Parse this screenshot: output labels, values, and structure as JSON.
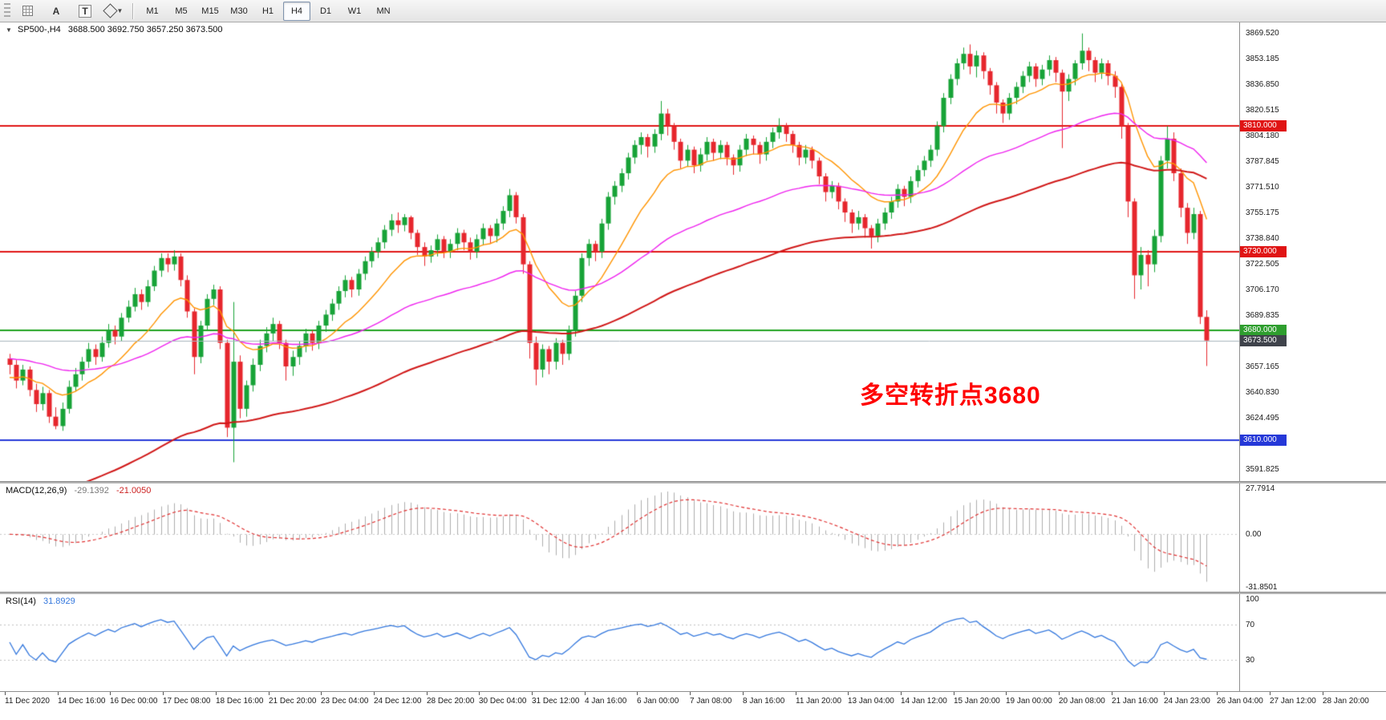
{
  "toolbar": {
    "tools": [
      {
        "id": "grid-tool",
        "icon": "grid-icon",
        "label": ""
      },
      {
        "id": "arrow-text-tool",
        "icon": "letter-a-icon",
        "label": "A"
      },
      {
        "id": "text-tool",
        "icon": "letter-t-icon",
        "label": "T"
      },
      {
        "id": "shapes-tool",
        "icon": "shapes-icon",
        "label": ""
      }
    ],
    "timeframes": [
      "M1",
      "M5",
      "M15",
      "M30",
      "H1",
      "H4",
      "D1",
      "W1",
      "MN"
    ],
    "active_timeframe": "H4"
  },
  "chart_header": {
    "collapse_icon": "triangle-down-icon",
    "symbol_period": "SP500-,H4",
    "ohlc": "3688.500 3692.750 3657.250 3673.500"
  },
  "annotation": {
    "text": "多空转折点3680",
    "color": "#FF0000"
  },
  "price_axis": {
    "labels": [
      "3869.520",
      "3853.185",
      "3836.850",
      "3820.515",
      "3804.180",
      "3787.845",
      "3771.510",
      "3755.175",
      "3738.840",
      "3722.505",
      "3706.170",
      "3689.835",
      "3657.165",
      "3640.830",
      "3624.495",
      "3608.160",
      "3591.825"
    ],
    "badges": [
      {
        "label": "3810.000",
        "level": 3810,
        "bg": "#e01414"
      },
      {
        "label": "3730.000",
        "level": 3730,
        "bg": "#e01414"
      },
      {
        "label": "3680.000",
        "level": 3680,
        "bg": "#2e9e2e"
      },
      {
        "label": "3673.500",
        "level": 3673.5,
        "bg": "#3f434b"
      },
      {
        "label": "3610.000",
        "level": 3610,
        "bg": "#2538d8"
      }
    ]
  },
  "chart_data": {
    "type": "candlestick",
    "symbol": "SP500-",
    "timeframe": "H4",
    "up_color": "#17a337",
    "down_color": "#e6262d",
    "ylim": [
      3584,
      3876
    ],
    "hlines": [
      {
        "level": 3810,
        "color": "#e01414",
        "width": 2
      },
      {
        "level": 3730,
        "color": "#e01414",
        "width": 2
      },
      {
        "level": 3680,
        "color": "#1fa31f",
        "width": 2
      },
      {
        "level": 3610,
        "color": "#2538d8",
        "width": 2
      }
    ],
    "bid_line": {
      "level": 3673.5,
      "color": "#a9b6bd",
      "width": 1
    },
    "moving_averages": [
      {
        "period": 14,
        "seed": 3650,
        "color": "#ff9400",
        "width": 1.4
      },
      {
        "period": 50,
        "seed": 3662,
        "color": "#ee22ee",
        "width": 1.4
      },
      {
        "period": 100,
        "seed": 3568,
        "color": "#d01818",
        "width": 2
      }
    ],
    "x_labels": [
      "11 Dec 2020",
      "14 Dec 16:00",
      "16 Dec 00:00",
      "17 Dec 08:00",
      "18 Dec 16:00",
      "21 Dec 20:00",
      "23 Dec 04:00",
      "24 Dec 12:00",
      "28 Dec 20:00",
      "30 Dec 04:00",
      "31 Dec 12:00",
      "4 Jan 16:00",
      "6 Jan 00:00",
      "7 Jan 08:00",
      "8 Jan 16:00",
      "11 Jan 20:00",
      "13 Jan 04:00",
      "14 Jan 12:00",
      "15 Jan 20:00",
      "19 Jan 00:00",
      "20 Jan 08:00",
      "21 Jan 16:00",
      "24 Jan 23:00",
      "26 Jan 04:00",
      "27 Jan 12:00",
      "28 Jan 20:00"
    ],
    "ohlc": [
      [
        3662,
        3665,
        3652,
        3658
      ],
      [
        3658,
        3661,
        3643,
        3648
      ],
      [
        3648,
        3658,
        3645,
        3655
      ],
      [
        3655,
        3657,
        3638,
        3642
      ],
      [
        3642,
        3646,
        3628,
        3633
      ],
      [
        3633,
        3644,
        3629,
        3640
      ],
      [
        3640,
        3642,
        3621,
        3625
      ],
      [
        3625,
        3631,
        3617,
        3619
      ],
      [
        3619,
        3634,
        3616,
        3630
      ],
      [
        3630,
        3648,
        3627,
        3644
      ],
      [
        3644,
        3656,
        3641,
        3652
      ],
      [
        3652,
        3663,
        3648,
        3660
      ],
      [
        3660,
        3672,
        3656,
        3668
      ],
      [
        3668,
        3671,
        3658,
        3663
      ],
      [
        3663,
        3676,
        3660,
        3672
      ],
      [
        3672,
        3684,
        3669,
        3680
      ],
      [
        3680,
        3683,
        3671,
        3676
      ],
      [
        3676,
        3691,
        3673,
        3688
      ],
      [
        3688,
        3699,
        3685,
        3695
      ],
      [
        3695,
        3707,
        3692,
        3703
      ],
      [
        3703,
        3706,
        3693,
        3698
      ],
      [
        3698,
        3712,
        3695,
        3708
      ],
      [
        3708,
        3721,
        3705,
        3718
      ],
      [
        3718,
        3729,
        3714,
        3726
      ],
      [
        3726,
        3729,
        3717,
        3722
      ],
      [
        3722,
        3731,
        3718,
        3727
      ],
      [
        3727,
        3729,
        3708,
        3712
      ],
      [
        3712,
        3715,
        3688,
        3692
      ],
      [
        3692,
        3694,
        3652,
        3663
      ],
      [
        3663,
        3686,
        3659,
        3683
      ],
      [
        3683,
        3703,
        3680,
        3700
      ],
      [
        3700,
        3709,
        3696,
        3706
      ],
      [
        3706,
        3708,
        3668,
        3672
      ],
      [
        3672,
        3674,
        3612,
        3618
      ],
      [
        3618,
        3698,
        3596,
        3660
      ],
      [
        3660,
        3664,
        3624,
        3630
      ],
      [
        3630,
        3648,
        3625,
        3645
      ],
      [
        3645,
        3662,
        3641,
        3658
      ],
      [
        3658,
        3674,
        3654,
        3670
      ],
      [
        3670,
        3682,
        3666,
        3678
      ],
      [
        3678,
        3688,
        3673,
        3684
      ],
      [
        3684,
        3686,
        3668,
        3672
      ],
      [
        3672,
        3674,
        3648,
        3657
      ],
      [
        3657,
        3667,
        3651,
        3663
      ],
      [
        3663,
        3673,
        3658,
        3670
      ],
      [
        3670,
        3681,
        3666,
        3678
      ],
      [
        3678,
        3680,
        3667,
        3672
      ],
      [
        3672,
        3686,
        3668,
        3683
      ],
      [
        3683,
        3693,
        3679,
        3690
      ],
      [
        3690,
        3700,
        3686,
        3697
      ],
      [
        3697,
        3708,
        3693,
        3705
      ],
      [
        3705,
        3715,
        3701,
        3712
      ],
      [
        3712,
        3714,
        3701,
        3706
      ],
      [
        3706,
        3719,
        3702,
        3716
      ],
      [
        3716,
        3727,
        3712,
        3724
      ],
      [
        3724,
        3733,
        3720,
        3730
      ],
      [
        3730,
        3739,
        3726,
        3736
      ],
      [
        3736,
        3747,
        3732,
        3744
      ],
      [
        3744,
        3754,
        3740,
        3750
      ],
      [
        3750,
        3755,
        3742,
        3747
      ],
      [
        3747,
        3754,
        3743,
        3752
      ],
      [
        3752,
        3753,
        3738,
        3742
      ],
      [
        3742,
        3744,
        3728,
        3733
      ],
      [
        3733,
        3736,
        3721,
        3727
      ],
      [
        3727,
        3734,
        3723,
        3731
      ],
      [
        3731,
        3741,
        3727,
        3738
      ],
      [
        3738,
        3740,
        3726,
        3730
      ],
      [
        3730,
        3738,
        3726,
        3735
      ],
      [
        3735,
        3745,
        3731,
        3742
      ],
      [
        3742,
        3744,
        3731,
        3736
      ],
      [
        3736,
        3739,
        3725,
        3730
      ],
      [
        3730,
        3741,
        3726,
        3738
      ],
      [
        3738,
        3748,
        3734,
        3745
      ],
      [
        3745,
        3747,
        3735,
        3740
      ],
      [
        3740,
        3751,
        3736,
        3748
      ],
      [
        3748,
        3759,
        3744,
        3756
      ],
      [
        3756,
        3770,
        3752,
        3766
      ],
      [
        3766,
        3768,
        3748,
        3752
      ],
      [
        3752,
        3754,
        3716,
        3722
      ],
      [
        3722,
        3724,
        3662,
        3672
      ],
      [
        3672,
        3676,
        3645,
        3655
      ],
      [
        3655,
        3671,
        3650,
        3668
      ],
      [
        3668,
        3670,
        3652,
        3660
      ],
      [
        3660,
        3675,
        3655,
        3672
      ],
      [
        3672,
        3674,
        3658,
        3665
      ],
      [
        3665,
        3683,
        3661,
        3680
      ],
      [
        3680,
        3705,
        3676,
        3702
      ],
      [
        3702,
        3729,
        3698,
        3726
      ],
      [
        3726,
        3738,
        3721,
        3735
      ],
      [
        3735,
        3737,
        3724,
        3730
      ],
      [
        3730,
        3751,
        3726,
        3748
      ],
      [
        3748,
        3768,
        3744,
        3765
      ],
      [
        3765,
        3775,
        3760,
        3772
      ],
      [
        3772,
        3783,
        3768,
        3780
      ],
      [
        3780,
        3793,
        3776,
        3790
      ],
      [
        3790,
        3801,
        3786,
        3798
      ],
      [
        3798,
        3806,
        3792,
        3803
      ],
      [
        3803,
        3805,
        3790,
        3797
      ],
      [
        3797,
        3808,
        3793,
        3805
      ],
      [
        3805,
        3826,
        3801,
        3818
      ],
      [
        3818,
        3821,
        3804,
        3810
      ],
      [
        3810,
        3812,
        3795,
        3800
      ],
      [
        3800,
        3802,
        3783,
        3788
      ],
      [
        3788,
        3798,
        3784,
        3795
      ],
      [
        3795,
        3797,
        3780,
        3785
      ],
      [
        3785,
        3796,
        3781,
        3792
      ],
      [
        3792,
        3803,
        3788,
        3800
      ],
      [
        3800,
        3802,
        3788,
        3793
      ],
      [
        3793,
        3801,
        3789,
        3798
      ],
      [
        3798,
        3800,
        3785,
        3790
      ],
      [
        3790,
        3792,
        3779,
        3785
      ],
      [
        3785,
        3798,
        3781,
        3795
      ],
      [
        3795,
        3805,
        3791,
        3802
      ],
      [
        3802,
        3804,
        3792,
        3798
      ],
      [
        3798,
        3800,
        3786,
        3792
      ],
      [
        3792,
        3803,
        3788,
        3800
      ],
      [
        3800,
        3809,
        3796,
        3806
      ],
      [
        3806,
        3815,
        3802,
        3810
      ],
      [
        3810,
        3812,
        3800,
        3805
      ],
      [
        3805,
        3807,
        3793,
        3798
      ],
      [
        3798,
        3800,
        3785,
        3790
      ],
      [
        3790,
        3798,
        3786,
        3795
      ],
      [
        3795,
        3797,
        3783,
        3788
      ],
      [
        3788,
        3790,
        3773,
        3778
      ],
      [
        3778,
        3780,
        3762,
        3768
      ],
      [
        3768,
        3775,
        3764,
        3772
      ],
      [
        3772,
        3774,
        3757,
        3762
      ],
      [
        3762,
        3764,
        3749,
        3755
      ],
      [
        3755,
        3757,
        3742,
        3748
      ],
      [
        3748,
        3756,
        3744,
        3752
      ],
      [
        3752,
        3754,
        3739,
        3745
      ],
      [
        3745,
        3747,
        3732,
        3740
      ],
      [
        3740,
        3751,
        3736,
        3748
      ],
      [
        3748,
        3758,
        3744,
        3755
      ],
      [
        3755,
        3765,
        3751,
        3762
      ],
      [
        3762,
        3773,
        3758,
        3770
      ],
      [
        3770,
        3772,
        3759,
        3765
      ],
      [
        3765,
        3778,
        3761,
        3775
      ],
      [
        3775,
        3785,
        3771,
        3782
      ],
      [
        3782,
        3791,
        3778,
        3788
      ],
      [
        3788,
        3798,
        3784,
        3795
      ],
      [
        3795,
        3813,
        3791,
        3810
      ],
      [
        3810,
        3831,
        3806,
        3828
      ],
      [
        3828,
        3843,
        3824,
        3840
      ],
      [
        3840,
        3853,
        3836,
        3850
      ],
      [
        3850,
        3860,
        3846,
        3856
      ],
      [
        3856,
        3862,
        3843,
        3848
      ],
      [
        3848,
        3858,
        3841,
        3855
      ],
      [
        3855,
        3857,
        3840,
        3845
      ],
      [
        3845,
        3847,
        3830,
        3836
      ],
      [
        3836,
        3838,
        3818,
        3825
      ],
      [
        3825,
        3827,
        3812,
        3818
      ],
      [
        3818,
        3831,
        3814,
        3828
      ],
      [
        3828,
        3838,
        3824,
        3835
      ],
      [
        3835,
        3845,
        3831,
        3842
      ],
      [
        3842,
        3851,
        3838,
        3848
      ],
      [
        3848,
        3850,
        3835,
        3840
      ],
      [
        3840,
        3849,
        3836,
        3846
      ],
      [
        3846,
        3855,
        3842,
        3852
      ],
      [
        3852,
        3854,
        3838,
        3844
      ],
      [
        3844,
        3846,
        3796,
        3832
      ],
      [
        3832,
        3843,
        3826,
        3840
      ],
      [
        3840,
        3852,
        3836,
        3850
      ],
      [
        3850,
        3869,
        3846,
        3858
      ],
      [
        3858,
        3860,
        3845,
        3852
      ],
      [
        3852,
        3854,
        3838,
        3844
      ],
      [
        3844,
        3853,
        3840,
        3850
      ],
      [
        3850,
        3852,
        3836,
        3842
      ],
      [
        3842,
        3845,
        3828,
        3835
      ],
      [
        3835,
        3837,
        3802,
        3810
      ],
      [
        3810,
        3812,
        3752,
        3762
      ],
      [
        3762,
        3764,
        3700,
        3715
      ],
      [
        3715,
        3733,
        3706,
        3728
      ],
      [
        3728,
        3731,
        3708,
        3722
      ],
      [
        3722,
        3744,
        3717,
        3740
      ],
      [
        3740,
        3791,
        3736,
        3788
      ],
      [
        3788,
        3810,
        3783,
        3802
      ],
      [
        3802,
        3806,
        3775,
        3780
      ],
      [
        3780,
        3783,
        3752,
        3758
      ],
      [
        3758,
        3761,
        3735,
        3742
      ],
      [
        3742,
        3758,
        3738,
        3754
      ],
      [
        3754,
        3756,
        3684,
        3688.5
      ],
      [
        3688.5,
        3692.75,
        3657.25,
        3673.5
      ]
    ]
  },
  "indicators": {
    "macd": {
      "title": "MACD(12,26,9)",
      "value_main": "-29.1392",
      "value_signal": "-21.0050",
      "fast": 12,
      "slow": 26,
      "signal": 9,
      "ylim": [
        -31.8501,
        27.7914
      ],
      "axis_labels": [
        "27.7914",
        "0.00",
        "-31.8501"
      ],
      "hist_color": "#adadad",
      "signal_color": "#e03030",
      "zero_line_color": "#c8c8c8"
    },
    "rsi": {
      "title": "RSI(14)",
      "value": "31.8929",
      "period": 14,
      "levels": [
        70,
        30
      ],
      "axis_labels": [
        "100",
        "70",
        "30"
      ],
      "color": "#3377dd",
      "level_color": "#c0c0c0"
    }
  }
}
